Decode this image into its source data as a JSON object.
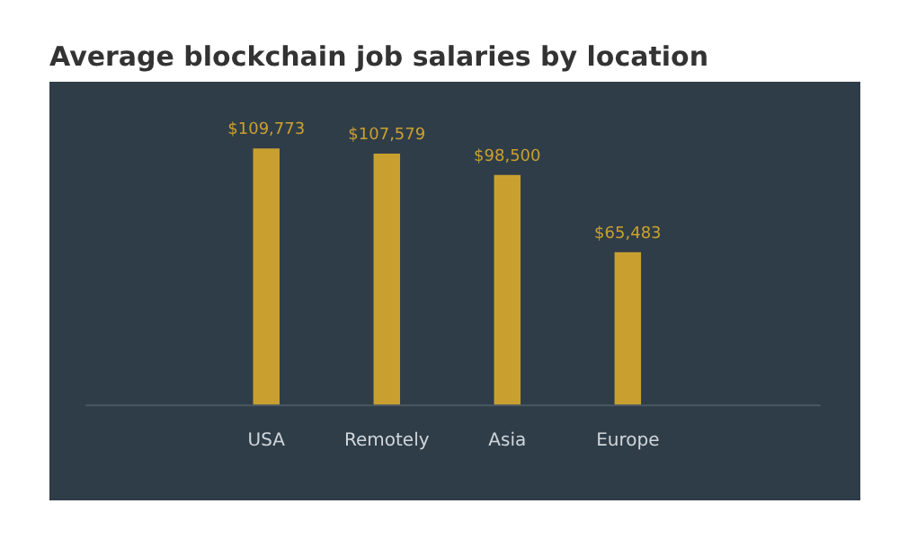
{
  "chart_data": {
    "type": "bar",
    "title": "Average blockchain job salaries by location",
    "categories": [
      "USA",
      "Remotely",
      "Asia",
      "Europe"
    ],
    "values": [
      109773,
      107579,
      98500,
      65483
    ],
    "value_labels": [
      "$109,773",
      "$107,579",
      "$98,500",
      "$65,483"
    ],
    "color": "#c9a030",
    "grid": false
  }
}
